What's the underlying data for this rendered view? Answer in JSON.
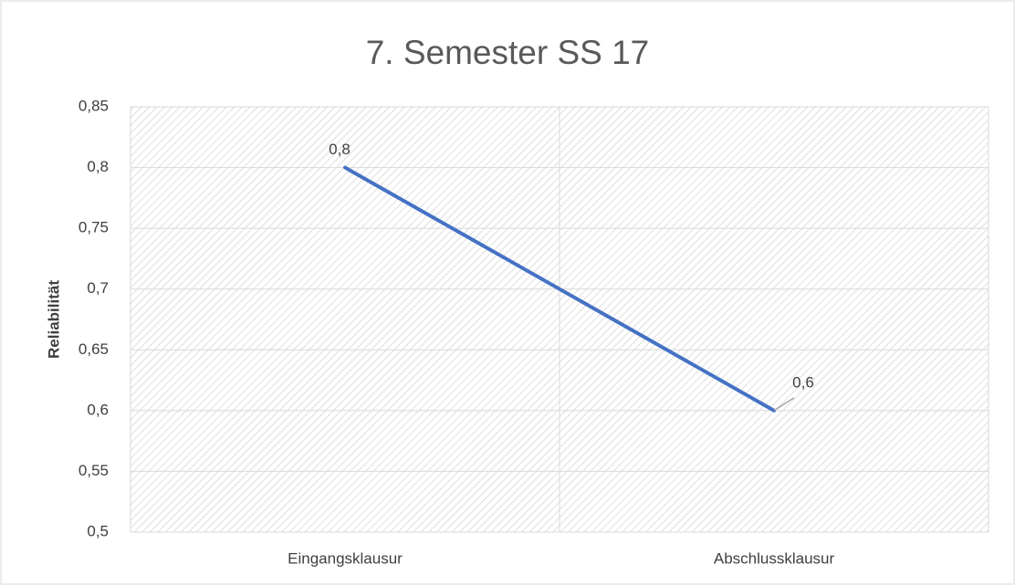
{
  "chart_data": {
    "type": "line",
    "title": "7. Semester SS 17",
    "y_label": "Reliabilität",
    "categories": [
      "Eingangsklausur",
      "Abschlussklausur"
    ],
    "values": [
      0.8,
      0.6
    ],
    "value_labels": [
      "0,8",
      "0,6"
    ],
    "color": "#4472c4",
    "ylim": [
      0.5,
      0.85
    ],
    "yticks": [
      {
        "value": 0.5,
        "label": "0,5"
      },
      {
        "value": 0.55,
        "label": "0,55"
      },
      {
        "value": 0.6,
        "label": "0,6"
      },
      {
        "value": 0.65,
        "label": "0,65"
      },
      {
        "value": 0.7,
        "label": "0,7"
      },
      {
        "value": 0.75,
        "label": "0,75"
      },
      {
        "value": 0.8,
        "label": "0,8"
      },
      {
        "value": 0.85,
        "label": "0,85"
      }
    ],
    "grid": true
  }
}
